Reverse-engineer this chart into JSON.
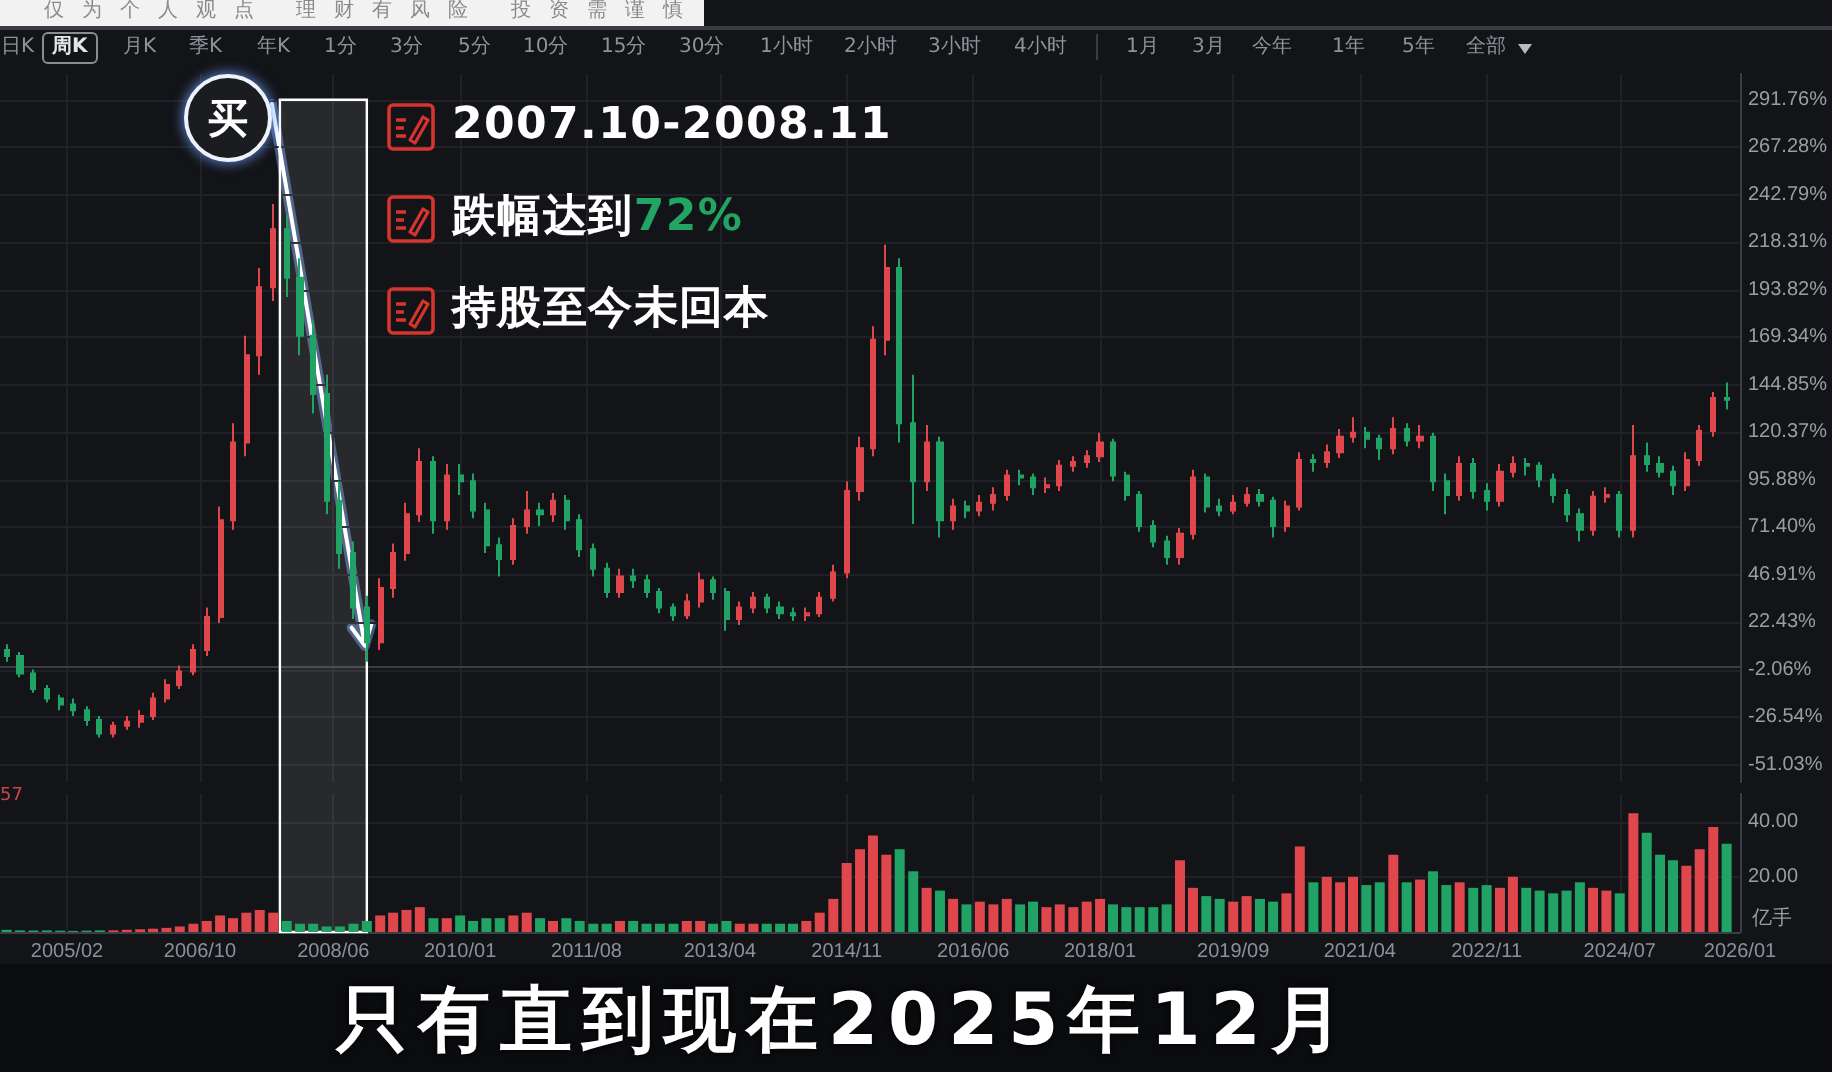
{
  "chart_data": [
    {
      "type": "candlestick",
      "x": [
        "2004-05",
        "2004-07",
        "2004-09",
        "2004-11",
        "2005-01",
        "2005-03",
        "2005-05",
        "2005-07",
        "2005-09",
        "2005-11",
        "2006-01",
        "2006-03",
        "2006-05",
        "2006-07",
        "2006-09",
        "2006-11",
        "2007-01",
        "2007-03",
        "2007-05",
        "2007-07",
        "2007-09",
        "2007-11",
        "2008-01",
        "2008-03",
        "2008-05",
        "2008-07",
        "2008-09",
        "2008-11",
        "2009-01",
        "2009-03",
        "2009-05",
        "2009-07",
        "2009-09",
        "2009-11",
        "2010-01",
        "2010-03",
        "2010-05",
        "2010-07",
        "2010-09",
        "2010-11",
        "2011-01",
        "2011-03",
        "2011-05",
        "2011-07",
        "2011-09",
        "2011-11",
        "2012-01",
        "2012-03",
        "2012-05",
        "2012-07",
        "2012-09",
        "2012-11",
        "2013-01",
        "2013-03",
        "2013-05",
        "2013-07",
        "2013-09",
        "2013-11",
        "2014-01",
        "2014-03",
        "2014-05",
        "2014-07",
        "2014-09",
        "2014-11",
        "2015-01",
        "2015-03",
        "2015-05",
        "2015-07",
        "2015-09",
        "2015-11",
        "2016-01",
        "2016-03",
        "2016-05",
        "2016-07",
        "2016-09",
        "2016-11",
        "2017-01",
        "2017-03",
        "2017-05",
        "2017-07",
        "2017-09",
        "2017-11",
        "2018-01",
        "2018-03",
        "2018-05",
        "2018-07",
        "2018-09",
        "2018-11",
        "2019-01",
        "2019-03",
        "2019-05",
        "2019-07",
        "2019-09",
        "2019-11",
        "2020-01",
        "2020-03",
        "2020-05",
        "2020-07",
        "2020-09",
        "2020-11",
        "2021-01",
        "2021-03",
        "2021-05",
        "2021-07",
        "2021-09",
        "2021-11",
        "2022-01",
        "2022-03",
        "2022-05",
        "2022-07",
        "2022-09",
        "2022-11",
        "2023-01",
        "2023-03",
        "2023-05",
        "2023-07",
        "2023-09",
        "2023-11",
        "2024-01",
        "2024-03",
        "2024-05",
        "2024-07",
        "2024-09",
        "2024-11",
        "2025-01",
        "2025-03",
        "2025-05",
        "2025-07",
        "2025-09",
        "2025-11"
      ],
      "ohlc": [
        [
          8,
          11,
          2,
          5
        ],
        [
          5,
          7,
          -6,
          -4
        ],
        [
          -4,
          -2,
          -14,
          -12
        ],
        [
          -12,
          -10,
          -19,
          -17
        ],
        [
          -17,
          -15,
          -23,
          -20
        ],
        [
          -20,
          -17,
          -26,
          -23
        ],
        [
          -23,
          -21,
          -31,
          -28
        ],
        [
          -28,
          -26,
          -37,
          -35
        ],
        [
          -35,
          -29,
          -37,
          -31
        ],
        [
          -31,
          -26,
          -33,
          -29
        ],
        [
          -29,
          -23,
          -32,
          -26
        ],
        [
          -26,
          -14,
          -28,
          -17
        ],
        [
          -17,
          -7,
          -19,
          -10
        ],
        [
          -10,
          0,
          -12,
          -3
        ],
        [
          -3,
          11,
          -5,
          8
        ],
        [
          8,
          30,
          5,
          25
        ],
        [
          25,
          82,
          22,
          75
        ],
        [
          75,
          125,
          70,
          115
        ],
        [
          115,
          170,
          108,
          160
        ],
        [
          160,
          205,
          150,
          195
        ],
        [
          195,
          238,
          188,
          225
        ],
        [
          225,
          232,
          190,
          200
        ],
        [
          200,
          210,
          160,
          170
        ],
        [
          170,
          178,
          130,
          140
        ],
        [
          140,
          150,
          78,
          85
        ],
        [
          85,
          95,
          50,
          58
        ],
        [
          58,
          64,
          24,
          30
        ],
        [
          30,
          36,
          2,
          12
        ],
        [
          12,
          45,
          8,
          40
        ],
        [
          40,
          63,
          35,
          58
        ],
        [
          58,
          84,
          54,
          78
        ],
        [
          78,
          112,
          74,
          105
        ],
        [
          105,
          108,
          68,
          75
        ],
        [
          75,
          104,
          70,
          98
        ],
        [
          98,
          104,
          88,
          95
        ],
        [
          95,
          99,
          76,
          80
        ],
        [
          80,
          84,
          58,
          62
        ],
        [
          62,
          66,
          46,
          55
        ],
        [
          55,
          76,
          52,
          72
        ],
        [
          72,
          90,
          68,
          80
        ],
        [
          80,
          84,
          72,
          78
        ],
        [
          78,
          89,
          74,
          85
        ],
        [
          85,
          88,
          70,
          75
        ],
        [
          75,
          78,
          56,
          60
        ],
        [
          60,
          63,
          46,
          50
        ],
        [
          50,
          53,
          35,
          38
        ],
        [
          38,
          50,
          35,
          46
        ],
        [
          46,
          50,
          40,
          44
        ],
        [
          44,
          47,
          35,
          38
        ],
        [
          38,
          40,
          27,
          30
        ],
        [
          30,
          32,
          23,
          26
        ],
        [
          26,
          37,
          24,
          33
        ],
        [
          33,
          48,
          30,
          44
        ],
        [
          44,
          46,
          34,
          38
        ],
        [
          38,
          40,
          18,
          24
        ],
        [
          24,
          33,
          21,
          30
        ],
        [
          30,
          38,
          27,
          35
        ],
        [
          35,
          37,
          27,
          30
        ],
        [
          30,
          33,
          24,
          27
        ],
        [
          27,
          30,
          23,
          26
        ],
        [
          26,
          30,
          23,
          27
        ],
        [
          27,
          38,
          25,
          35
        ],
        [
          35,
          52,
          33,
          48
        ],
        [
          48,
          95,
          45,
          90
        ],
        [
          90,
          118,
          85,
          112
        ],
        [
          112,
          175,
          108,
          168
        ],
        [
          168,
          217,
          160,
          205
        ],
        [
          205,
          210,
          115,
          125
        ],
        [
          125,
          150,
          73,
          95
        ],
        [
          95,
          124,
          90,
          115
        ],
        [
          115,
          118,
          66,
          75
        ],
        [
          75,
          86,
          70,
          82
        ],
        [
          82,
          85,
          76,
          80
        ],
        [
          80,
          88,
          77,
          84
        ],
        [
          84,
          92,
          80,
          88
        ],
        [
          88,
          101,
          85,
          98
        ],
        [
          98,
          101,
          93,
          97
        ],
        [
          97,
          99,
          88,
          92
        ],
        [
          92,
          97,
          89,
          93
        ],
        [
          93,
          106,
          90,
          103
        ],
        [
          103,
          108,
          100,
          105
        ],
        [
          105,
          111,
          102,
          108
        ],
        [
          108,
          120,
          105,
          115
        ],
        [
          115,
          117,
          95,
          98
        ],
        [
          98,
          100,
          85,
          88
        ],
        [
          88,
          90,
          69,
          72
        ],
        [
          72,
          75,
          61,
          64
        ],
        [
          64,
          67,
          52,
          56
        ],
        [
          56,
          71,
          52,
          68
        ],
        [
          68,
          101,
          65,
          97
        ],
        [
          97,
          99,
          79,
          82
        ],
        [
          82,
          86,
          77,
          80
        ],
        [
          80,
          88,
          78,
          84
        ],
        [
          84,
          92,
          82,
          88
        ],
        [
          88,
          91,
          82,
          85
        ],
        [
          85,
          87,
          66,
          72
        ],
        [
          72,
          85,
          69,
          82
        ],
        [
          82,
          110,
          80,
          106
        ],
        [
          106,
          109,
          100,
          105
        ],
        [
          105,
          114,
          102,
          110
        ],
        [
          110,
          122,
          107,
          118
        ],
        [
          118,
          128,
          115,
          120
        ],
        [
          120,
          123,
          112,
          117
        ],
        [
          117,
          119,
          106,
          112
        ],
        [
          112,
          128,
          109,
          122
        ],
        [
          122,
          125,
          113,
          116
        ],
        [
          116,
          124,
          112,
          118
        ],
        [
          118,
          120,
          90,
          95
        ],
        [
          95,
          99,
          78,
          88
        ],
        [
          88,
          108,
          85,
          104
        ],
        [
          104,
          107,
          86,
          90
        ],
        [
          90,
          94,
          80,
          85
        ],
        [
          85,
          104,
          82,
          100
        ],
        [
          100,
          108,
          97,
          104
        ],
        [
          104,
          107,
          98,
          103
        ],
        [
          103,
          105,
          92,
          96
        ],
        [
          96,
          99,
          84,
          88
        ],
        [
          88,
          91,
          74,
          78
        ],
        [
          78,
          81,
          64,
          70
        ],
        [
          70,
          90,
          67,
          87
        ],
        [
          87,
          92,
          84,
          88
        ],
        [
          88,
          90,
          66,
          70
        ],
        [
          70,
          124,
          66,
          108
        ],
        [
          108,
          115,
          100,
          104
        ],
        [
          104,
          108,
          97,
          100
        ],
        [
          100,
          103,
          88,
          93
        ],
        [
          93,
          110,
          90,
          106
        ],
        [
          106,
          124,
          103,
          121
        ],
        [
          121,
          141,
          118,
          138
        ],
        [
          138,
          146,
          132,
          137
        ]
      ],
      "colors": [
        "#21a366",
        "#21a366",
        "#21a366",
        "#21a366",
        "#21a366",
        "#21a366",
        "#21a366",
        "#21a366",
        "#e0474c",
        "#e0474c",
        "#e0474c",
        "#e0474c",
        "#e0474c",
        "#e0474c",
        "#e0474c",
        "#e0474c",
        "#e0474c",
        "#e0474c",
        "#e0474c",
        "#e0474c",
        "#e0474c",
        "#21a366",
        "#21a366",
        "#21a366",
        "#21a366",
        "#21a366",
        "#21a366",
        "#21a366",
        "#e0474c",
        "#e0474c",
        "#e0474c",
        "#e0474c",
        "#21a366",
        "#e0474c",
        "#21a366",
        "#21a366",
        "#21a366",
        "#21a366",
        "#e0474c",
        "#e0474c",
        "#21a366",
        "#e0474c",
        "#21a366",
        "#21a366",
        "#21a366",
        "#21a366",
        "#e0474c",
        "#21a366",
        "#21a366",
        "#21a366",
        "#21a366",
        "#e0474c",
        "#e0474c",
        "#21a366",
        "#21a366",
        "#e0474c",
        "#e0474c",
        "#21a366",
        "#21a366",
        "#21a366",
        "#e0474c",
        "#e0474c",
        "#e0474c",
        "#e0474c",
        "#e0474c",
        "#e0474c",
        "#e0474c",
        "#21a366",
        "#21a366",
        "#e0474c",
        "#21a366",
        "#e0474c",
        "#21a366",
        "#e0474c",
        "#e0474c",
        "#e0474c",
        "#21a366",
        "#21a366",
        "#e0474c",
        "#e0474c",
        "#e0474c",
        "#e0474c",
        "#e0474c",
        "#21a366",
        "#21a366",
        "#21a366",
        "#21a366",
        "#21a366",
        "#e0474c",
        "#e0474c",
        "#21a366",
        "#21a366",
        "#e0474c",
        "#e0474c",
        "#21a366",
        "#21a366",
        "#e0474c",
        "#e0474c",
        "#21a366",
        "#e0474c",
        "#e0474c",
        "#e0474c",
        "#21a366",
        "#21a366",
        "#e0474c",
        "#21a366",
        "#e0474c",
        "#21a366",
        "#21a366",
        "#e0474c",
        "#21a366",
        "#21a366",
        "#e0474c",
        "#e0474c",
        "#21a366",
        "#21a366",
        "#21a366",
        "#21a366",
        "#21a366",
        "#e0474c",
        "#e0474c",
        "#21a366",
        "#e0474c",
        "#21a366",
        "#21a366",
        "#21a366",
        "#e0474c",
        "#e0474c",
        "#e0474c",
        "#21a366"
      ],
      "xlim": [
        "2004-04",
        "2026-01"
      ],
      "xticks": [
        {
          "value": "2005-02",
          "label": null
        },
        {
          "value": "2006-10",
          "label": null
        },
        {
          "value": "2008-06",
          "label": null
        },
        {
          "value": "2010-01",
          "label": null
        },
        {
          "value": "2011-08",
          "label": null
        },
        {
          "value": "2013-04",
          "label": null
        },
        {
          "value": "2014-11",
          "label": null
        },
        {
          "value": "2016-06",
          "label": null
        },
        {
          "value": "2018-01",
          "label": null
        },
        {
          "value": "2019-09",
          "label": null
        },
        {
          "value": "2021-04",
          "label": null
        },
        {
          "value": "2022-11",
          "label": null
        },
        {
          "value": "2024-07",
          "label": null
        },
        {
          "value": "2026-01",
          "label": null
        }
      ],
      "ylim": [
        -60,
        305
      ],
      "yticks": [
        {
          "value": -51.03,
          "label": "-51.03%"
        },
        {
          "value": -26.54,
          "label": "-26.54%"
        },
        {
          "value": -2.06,
          "label": "-2.06%"
        },
        {
          "value": 22.43,
          "label": "22.43%"
        },
        {
          "value": 46.91,
          "label": "46.91%"
        },
        {
          "value": 71.4,
          "label": "71.40%"
        },
        {
          "value": 95.88,
          "label": "95.88%"
        },
        {
          "value": 120.37,
          "label": "120.37%"
        },
        {
          "value": 144.85,
          "label": "144.85%"
        },
        {
          "value": 169.34,
          "label": "169.34%"
        },
        {
          "value": 193.82,
          "label": "193.82%"
        },
        {
          "value": 218.31,
          "label": "218.31%"
        },
        {
          "value": 242.79,
          "label": "242.79%"
        },
        {
          "value": 267.28,
          "label": "267.28%"
        },
        {
          "value": 291.76,
          "label": "291.76%"
        }
      ],
      "tick_labels": "y",
      "grid": true,
      "bands": [
        {
          "axis": "x",
          "from": "2007-10",
          "to": "2008-11",
          "color": "#ffffff"
        }
      ],
      "annotations": [
        "仅为个人观点 理财有风险 投资需谨慎",
        "日K",
        "周K",
        "月K",
        "季K",
        "年K",
        "1分",
        "3分",
        "5分",
        "10分",
        "15分",
        "30分",
        "1小时",
        "2小时",
        "3小时",
        "4小时",
        "1月",
        "3月",
        "今年",
        "1年",
        "5年",
        "全部",
        {
          "text": "买",
          "x": "2007-10",
          "y": 238
        },
        "2007.10-2008.11",
        "跌幅达到72%",
        "持股至今未回本"
      ]
    },
    {
      "type": "bar",
      "x": [
        "2004-05",
        "2004-07",
        "2004-09",
        "2004-11",
        "2005-01",
        "2005-03",
        "2005-05",
        "2005-07",
        "2005-09",
        "2005-11",
        "2006-01",
        "2006-03",
        "2006-05",
        "2006-07",
        "2006-09",
        "2006-11",
        "2007-01",
        "2007-03",
        "2007-05",
        "2007-07",
        "2007-09",
        "2007-11",
        "2008-01",
        "2008-03",
        "2008-05",
        "2008-07",
        "2008-09",
        "2008-11",
        "2009-01",
        "2009-03",
        "2009-05",
        "2009-07",
        "2009-09",
        "2009-11",
        "2010-01",
        "2010-03",
        "2010-05",
        "2010-07",
        "2010-09",
        "2010-11",
        "2011-01",
        "2011-03",
        "2011-05",
        "2011-07",
        "2011-09",
        "2011-11",
        "2012-01",
        "2012-03",
        "2012-05",
        "2012-07",
        "2012-09",
        "2012-11",
        "2013-01",
        "2013-03",
        "2013-05",
        "2013-07",
        "2013-09",
        "2013-11",
        "2014-01",
        "2014-03",
        "2014-05",
        "2014-07",
        "2014-09",
        "2014-11",
        "2015-01",
        "2015-03",
        "2015-05",
        "2015-07",
        "2015-09",
        "2015-11",
        "2016-01",
        "2016-03",
        "2016-05",
        "2016-07",
        "2016-09",
        "2016-11",
        "2017-01",
        "2017-03",
        "2017-05",
        "2017-07",
        "2017-09",
        "2017-11",
        "2018-01",
        "2018-03",
        "2018-05",
        "2018-07",
        "2018-09",
        "2018-11",
        "2019-01",
        "2019-03",
        "2019-05",
        "2019-07",
        "2019-09",
        "2019-11",
        "2020-01",
        "2020-03",
        "2020-05",
        "2020-07",
        "2020-09",
        "2020-11",
        "2021-01",
        "2021-03",
        "2021-05",
        "2021-07",
        "2021-09",
        "2021-11",
        "2022-01",
        "2022-03",
        "2022-05",
        "2022-07",
        "2022-09",
        "2022-11",
        "2023-01",
        "2023-03",
        "2023-05",
        "2023-07",
        "2023-09",
        "2023-11",
        "2024-01",
        "2024-03",
        "2024-05",
        "2024-07",
        "2024-09",
        "2024-11",
        "2025-01",
        "2025-03",
        "2025-05",
        "2025-07",
        "2025-09",
        "2025-11"
      ],
      "values": [
        0.8,
        0.6,
        0.5,
        0.6,
        0.5,
        0.4,
        0.5,
        0.6,
        0.6,
        0.8,
        1,
        1.2,
        1.5,
        2,
        3,
        4,
        6,
        5,
        7,
        8,
        7,
        4,
        3,
        3,
        2,
        2,
        3,
        4,
        6,
        7,
        8,
        9,
        5,
        5,
        6,
        4,
        5,
        5,
        6,
        7,
        5,
        4,
        5,
        4,
        3,
        3,
        4,
        4,
        3,
        3,
        3,
        4,
        4,
        3,
        4,
        3,
        3,
        3,
        3,
        3,
        4,
        7,
        12,
        25,
        30,
        35,
        28,
        30,
        22,
        16,
        15,
        12,
        10,
        11,
        10,
        12,
        10,
        11,
        9,
        10,
        9,
        11,
        12,
        10,
        9,
        9,
        9,
        10,
        26,
        16,
        13,
        12,
        11,
        13,
        12,
        11,
        14,
        31,
        18,
        20,
        18,
        20,
        17,
        18,
        28,
        18,
        19,
        22,
        17,
        18,
        16,
        17,
        16,
        20,
        16,
        15,
        14,
        15,
        18,
        16,
        15,
        14,
        43,
        36,
        28,
        26,
        24,
        30,
        38,
        32
      ],
      "colors": [
        "#21a366",
        "#21a366",
        "#21a366",
        "#21a366",
        "#21a366",
        "#21a366",
        "#21a366",
        "#21a366",
        "#e0474c",
        "#e0474c",
        "#e0474c",
        "#e0474c",
        "#e0474c",
        "#e0474c",
        "#e0474c",
        "#e0474c",
        "#e0474c",
        "#e0474c",
        "#e0474c",
        "#e0474c",
        "#e0474c",
        "#21a366",
        "#21a366",
        "#21a366",
        "#21a366",
        "#21a366",
        "#21a366",
        "#21a366",
        "#e0474c",
        "#e0474c",
        "#e0474c",
        "#e0474c",
        "#21a366",
        "#e0474c",
        "#21a366",
        "#21a366",
        "#21a366",
        "#21a366",
        "#e0474c",
        "#e0474c",
        "#21a366",
        "#e0474c",
        "#21a366",
        "#21a366",
        "#21a366",
        "#21a366",
        "#e0474c",
        "#21a366",
        "#21a366",
        "#21a366",
        "#21a366",
        "#e0474c",
        "#e0474c",
        "#21a366",
        "#21a366",
        "#e0474c",
        "#e0474c",
        "#21a366",
        "#21a366",
        "#21a366",
        "#e0474c",
        "#e0474c",
        "#e0474c",
        "#e0474c",
        "#e0474c",
        "#e0474c",
        "#e0474c",
        "#21a366",
        "#21a366",
        "#e0474c",
        "#21a366",
        "#e0474c",
        "#21a366",
        "#e0474c",
        "#e0474c",
        "#e0474c",
        "#21a366",
        "#21a366",
        "#e0474c",
        "#e0474c",
        "#e0474c",
        "#e0474c",
        "#e0474c",
        "#21a366",
        "#21a366",
        "#21a366",
        "#21a366",
        "#21a366",
        "#e0474c",
        "#e0474c",
        "#21a366",
        "#21a366",
        "#e0474c",
        "#e0474c",
        "#21a366",
        "#21a366",
        "#e0474c",
        "#e0474c",
        "#21a366",
        "#e0474c",
        "#e0474c",
        "#e0474c",
        "#21a366",
        "#21a366",
        "#e0474c",
        "#21a366",
        "#e0474c",
        "#21a366",
        "#21a366",
        "#e0474c",
        "#21a366",
        "#21a366",
        "#e0474c",
        "#e0474c",
        "#21a366",
        "#21a366",
        "#21a366",
        "#21a366",
        "#21a366",
        "#e0474c",
        "#e0474c",
        "#21a366",
        "#e0474c",
        "#21a366",
        "#21a366",
        "#21a366",
        "#e0474c",
        "#e0474c",
        "#e0474c",
        "#21a366"
      ],
      "xlim": [
        "2004-04",
        "2026-01"
      ],
      "xticks": [
        {
          "value": "2005-02",
          "label": "2005/02"
        },
        {
          "value": "2006-10",
          "label": "2006/10"
        },
        {
          "value": "2008-06",
          "label": "2008/06"
        },
        {
          "value": "2010-01",
          "label": "2010/01"
        },
        {
          "value": "2011-08",
          "label": "2011/08"
        },
        {
          "value": "2013-04",
          "label": "2013/04"
        },
        {
          "value": "2014-11",
          "label": "2014/11"
        },
        {
          "value": "2016-06",
          "label": "2016/06"
        },
        {
          "value": "2018-01",
          "label": "2018/01"
        },
        {
          "value": "2019-09",
          "label": "2019/09"
        },
        {
          "value": "2021-04",
          "label": "2021/04"
        },
        {
          "value": "2022-11",
          "label": "2022/11"
        },
        {
          "value": "2024-07",
          "label": "2024/07"
        },
        {
          "value": "2026-01",
          "label": "2026/01"
        }
      ],
      "ylim": [
        0,
        50
      ],
      "yticks": [
        {
          "value": 20,
          "label": "20.00"
        },
        {
          "value": 40,
          "label": "40.00"
        }
      ],
      "ylabel": "亿手",
      "grid": true,
      "bands": [
        {
          "axis": "x",
          "from": "2007-10",
          "to": "2008-11",
          "color": "#ffffff"
        }
      ],
      "annotations": [
        "57",
        "只有直到现在2025年12月"
      ]
    }
  ]
}
